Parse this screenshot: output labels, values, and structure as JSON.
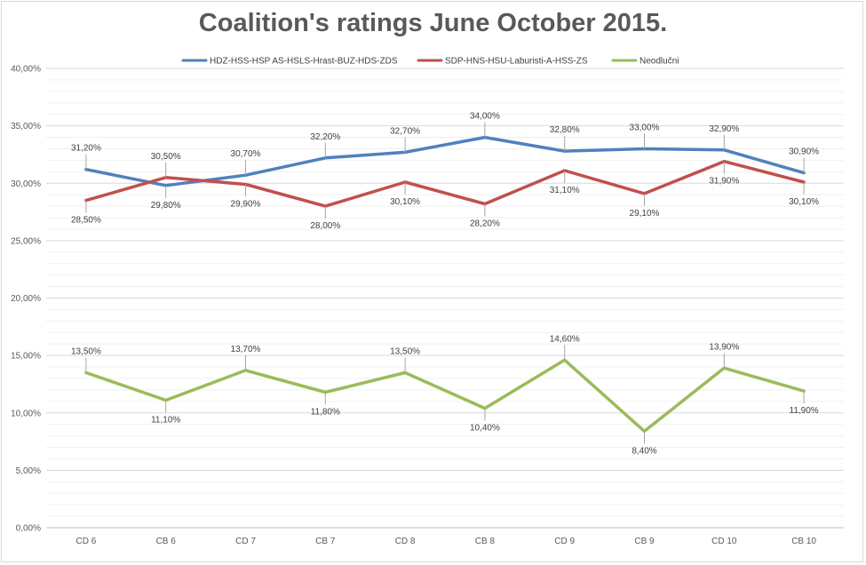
{
  "chart_data": {
    "type": "line",
    "title": "Coalition's ratings June October 2015.",
    "categories": [
      "CD 6",
      "CB 6",
      "CD 7",
      "CB 7",
      "CD 8",
      "CB 8",
      "CD 9",
      "CB 9",
      "CD 10",
      "CB 10"
    ],
    "y_ticks": [
      "0,00%",
      "5,00%",
      "10,00%",
      "15,00%",
      "20,00%",
      "25,00%",
      "30,00%",
      "35,00%",
      "40,00%"
    ],
    "ylim": [
      0,
      40
    ],
    "grid": true,
    "legend_position": "top",
    "series": [
      {
        "name": "HDZ-HSS-HSP AS-HSLS-Hrast-BUZ-HDS-ZDS",
        "color": "#4f81bd",
        "values": [
          31.2,
          29.8,
          30.7,
          32.2,
          32.7,
          34.0,
          32.8,
          33.0,
          32.9,
          30.9
        ],
        "labels": [
          "31,20%",
          "29,80%",
          "30,70%",
          "32,20%",
          "32,70%",
          "34,00%",
          "32,80%",
          "33,00%",
          "32,90%",
          "30,90%"
        ]
      },
      {
        "name": "SDP-HNS-HSU-Laburisti-A-HSS-ZS",
        "color": "#c0504d",
        "values": [
          28.5,
          30.5,
          29.9,
          28.0,
          30.1,
          28.2,
          31.1,
          29.1,
          31.9,
          30.1
        ],
        "labels": [
          "28,50%",
          "30,50%",
          "29,90%",
          "28,00%",
          "30,10%",
          "28,20%",
          "31,10%",
          "29,10%",
          "31,90%",
          "30,10%"
        ]
      },
      {
        "name": "Neodlučni",
        "color": "#9bbb59",
        "values": [
          13.5,
          11.1,
          13.7,
          11.8,
          13.5,
          10.4,
          14.6,
          8.4,
          13.9,
          11.9
        ],
        "labels": [
          "13,50%",
          "11,10%",
          "13,70%",
          "11,80%",
          "13,50%",
          "10,40%",
          "14,60%",
          "8,40%",
          "13,90%",
          "11,90%"
        ]
      }
    ]
  }
}
